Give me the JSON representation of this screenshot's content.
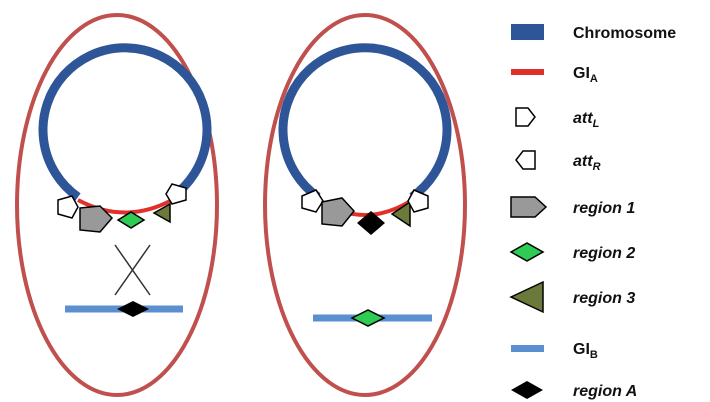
{
  "legend": {
    "items": [
      {
        "label": "Chromosome"
      },
      {
        "label": "GI",
        "sub": "A"
      },
      {
        "label": "att",
        "sub": "L"
      },
      {
        "label": "att",
        "sub": "R"
      },
      {
        "label": "region 1"
      },
      {
        "label": "region 2"
      },
      {
        "label": "region 3"
      },
      {
        "label": "GI",
        "sub": "B"
      },
      {
        "label": "region A"
      }
    ]
  }
}
